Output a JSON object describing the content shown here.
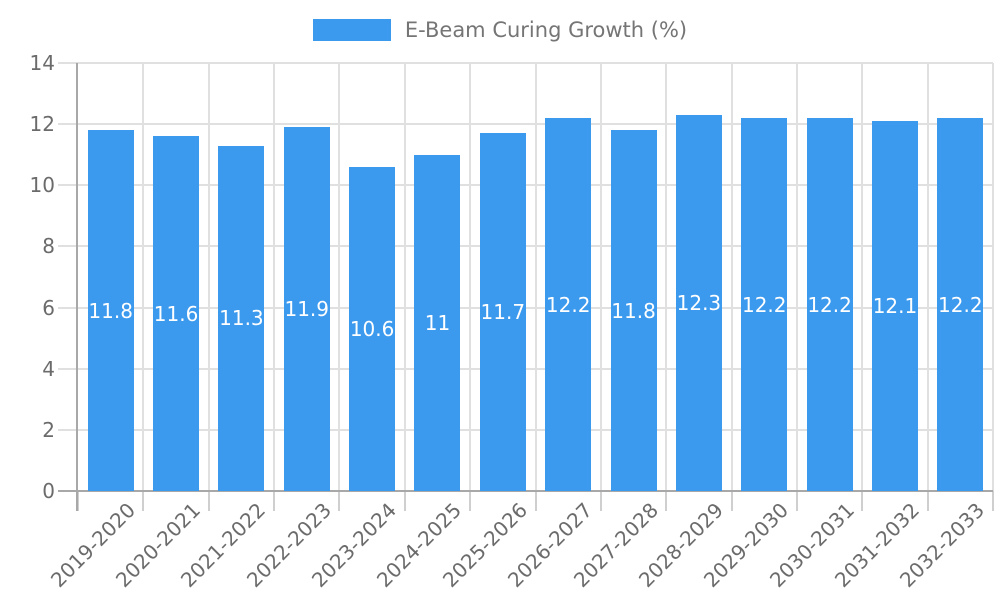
{
  "legend": {
    "label": "E-Beam Curing Growth (%)",
    "swatch_color": "#3b99ee"
  },
  "chart_data": {
    "type": "bar",
    "title": "E-Beam Curing Growth (%)",
    "categories": [
      "2019-2020",
      "2020-2021",
      "2021-2022",
      "2022-2023",
      "2023-2024",
      "2024-2025",
      "2025-2026",
      "2026-2027",
      "2027-2028",
      "2028-2029",
      "2029-2030",
      "2030-2031",
      "2031-2032",
      "2032-2033"
    ],
    "values": [
      11.8,
      11.6,
      11.3,
      11.9,
      10.6,
      11,
      11.7,
      12.2,
      11.8,
      12.3,
      12.2,
      12.2,
      12.1,
      12.2
    ],
    "xlabel": "",
    "ylabel": "",
    "ylim": [
      0,
      14
    ],
    "yticks": [
      0,
      2,
      4,
      6,
      8,
      10,
      12,
      14
    ],
    "grid": true,
    "legend_position": "top",
    "colors": {
      "bar": "#3b99ee",
      "grid": "#e0e0e0",
      "tick": "#cfcfcf",
      "axis": "#a8a8a8",
      "axis_text": "#6b6b6b",
      "legend_text": "#757575",
      "bar_label": "#ffffff",
      "background": "#ffffff"
    }
  }
}
